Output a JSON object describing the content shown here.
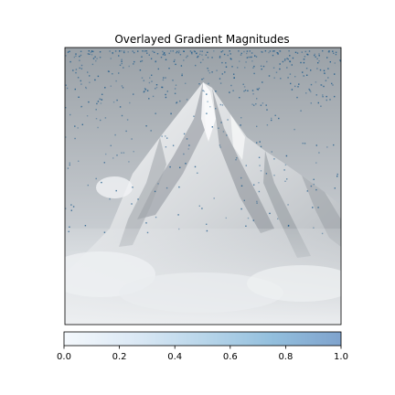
{
  "chart_data": {
    "type": "heatmap",
    "title": "Overlayed Gradient Magnitudes",
    "xlabel": "",
    "ylabel": "",
    "grid": false,
    "colorbar": {
      "orientation": "horizontal",
      "range": [
        0,
        1
      ],
      "ticks": [
        0.0,
        0.2,
        0.4,
        0.6,
        0.8,
        1.0
      ],
      "tick_labels": [
        "0.0",
        "0.2",
        "0.4",
        "0.6",
        "0.8",
        "1.0"
      ],
      "colormap": [
        "#f4f8fc",
        "#dce9f5",
        "#b9d6ea",
        "#93bfdd",
        "#7fa3cd"
      ]
    },
    "background_image": "mountain-peak-grayscale",
    "overlay": "gradient-magnitude-dots",
    "colors": {
      "overlay_dots": "#1d5a8a",
      "frame": "#000000"
    }
  }
}
